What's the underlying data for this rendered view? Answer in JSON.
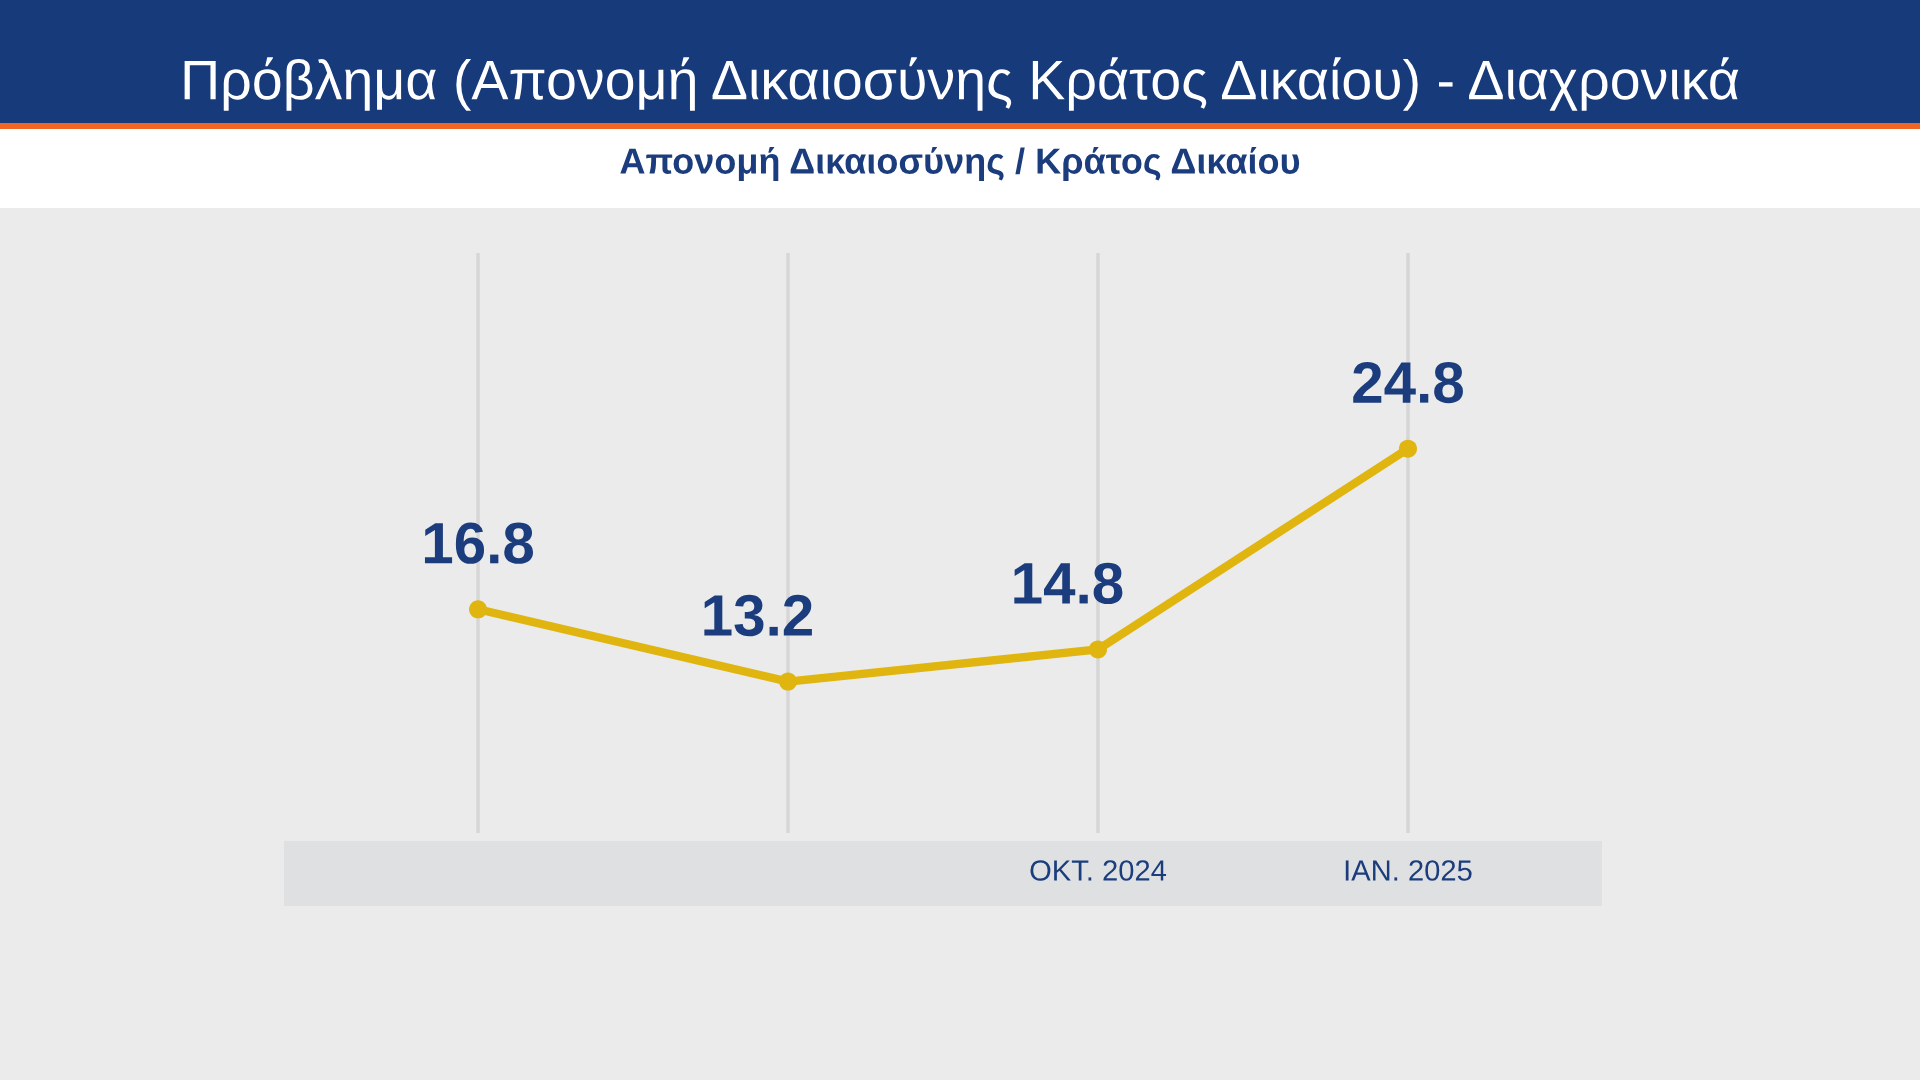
{
  "chart_data": {
    "type": "line",
    "title": "Πρόβλημα (Απονομή Δικαιοσύνης Κράτος Δικαίου) - Διαχρονικά",
    "subtitle": "Απονομή Δικαιοσύνης / Κράτος Δικαίου",
    "categories": [
      null,
      null,
      "ΟΚΤ. 2024",
      "ΙΑΝ. 2025"
    ],
    "values": [
      16.8,
      13.2,
      14.8,
      24.8
    ],
    "color": "#e0b50f",
    "data_labels": true,
    "grid": "x",
    "tick_labels": "x",
    "marker": "circle",
    "line_style": "solid"
  }
}
